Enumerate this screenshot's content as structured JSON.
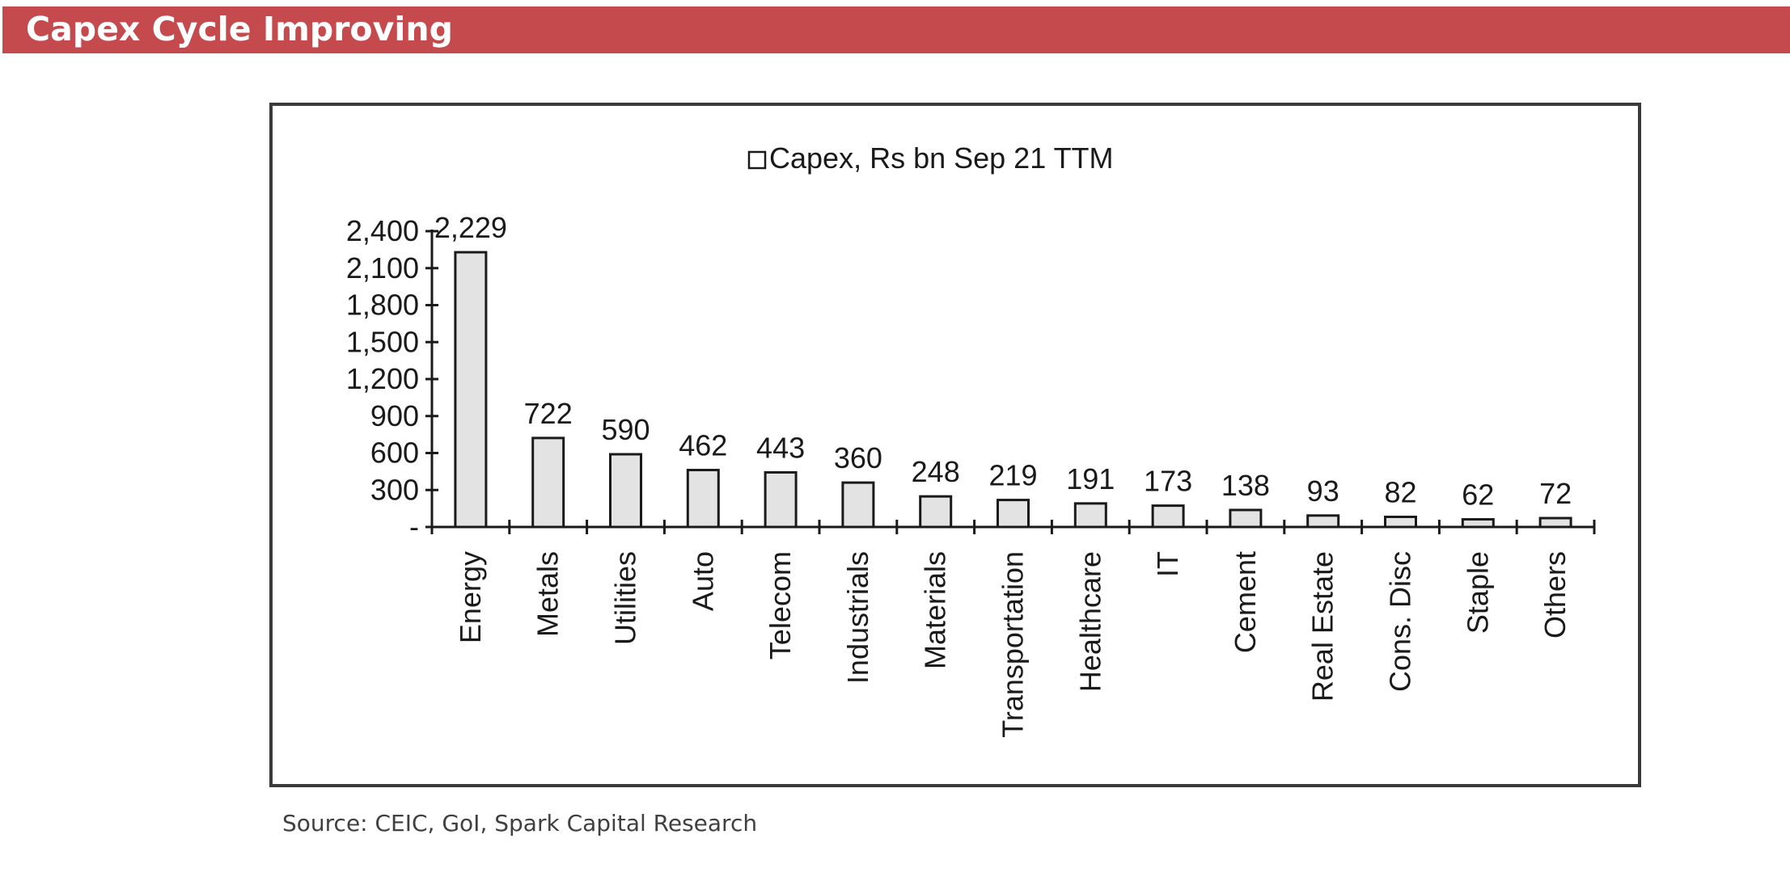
{
  "header": {
    "title": "Capex Cycle Improving"
  },
  "footer": {
    "source": "Source: CEIC, GoI, Spark Capital Research"
  },
  "colors": {
    "banner": "#c44a4e",
    "bar_fill": "#e3e3e3",
    "bar_stroke": "#1a1a1a",
    "axis": "#1a1a1a"
  },
  "chart_data": {
    "type": "bar",
    "categories": [
      "Energy",
      "Metals",
      "Utilities",
      "Auto",
      "Telecom",
      "Industrials",
      "Materials",
      "Transportation",
      "Healthcare",
      "IT",
      "Cement",
      "Real Estate",
      "Cons. Disc",
      "Staple",
      "Others"
    ],
    "series": [
      {
        "name": "Capex, Rs bn Sep 21 TTM",
        "values": [
          2229,
          722,
          590,
          462,
          443,
          360,
          248,
          219,
          191,
          173,
          138,
          93,
          82,
          62,
          72
        ]
      }
    ],
    "data_labels": [
      "2,229",
      "722",
      "590",
      "462",
      "443",
      "360",
      "248",
      "219",
      "191",
      "173",
      "138",
      "93",
      "82",
      "62",
      "72"
    ],
    "y_ticks": [
      0,
      300,
      600,
      900,
      1200,
      1500,
      1800,
      2100,
      2400
    ],
    "y_tick_labels": [
      "-",
      "300",
      "600",
      "900",
      "1,200",
      "1,500",
      "1,800",
      "2,100",
      "2,400"
    ],
    "ylim": [
      0,
      2400
    ],
    "title": "",
    "xlabel": "",
    "ylabel": "",
    "legend": "top-center",
    "grid": false
  }
}
